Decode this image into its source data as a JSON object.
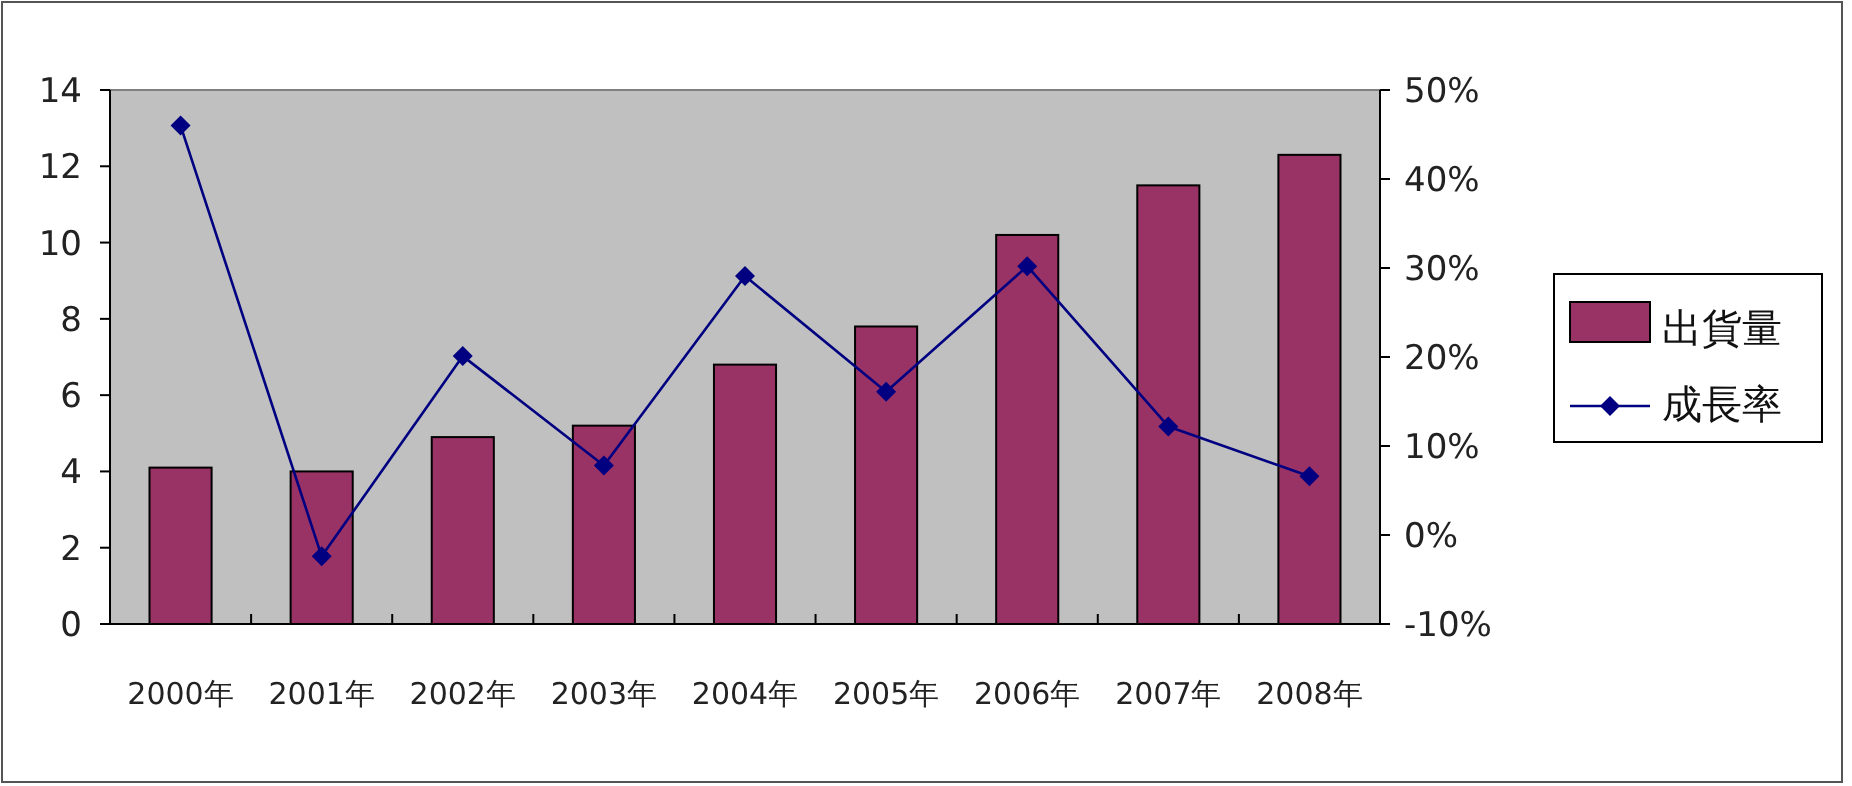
{
  "chart_data": {
    "type": "bar",
    "categories": [
      "2000年",
      "2001年",
      "2002年",
      "2003年",
      "2004年",
      "2005年",
      "2006年",
      "2007年",
      "2008年"
    ],
    "series": [
      {
        "name": "出貨量",
        "color": "#993366",
        "values": [
          4.1,
          4.0,
          4.9,
          5.2,
          6.8,
          7.8,
          10.2,
          11.5,
          12.3
        ]
      },
      {
        "name": "成長率",
        "type": "line",
        "axis": "y2",
        "color": "#000080",
        "marker": "diamond",
        "values": [
          46,
          -2.4,
          20.1,
          7.8,
          29.1,
          16.1,
          30.2,
          12.2,
          6.6
        ]
      }
    ],
    "ylim": [
      0,
      14
    ],
    "yticks": [
      0,
      2,
      4,
      6,
      8,
      10,
      12,
      14
    ],
    "y2lim": [
      -10,
      50
    ],
    "y2ticks": [
      {
        "value": -10,
        "label": "-10%"
      },
      {
        "value": 0,
        "label": "0%"
      },
      {
        "value": 10,
        "label": "10%"
      },
      {
        "value": 20,
        "label": "20%"
      },
      {
        "value": 30,
        "label": "30%"
      },
      {
        "value": 40,
        "label": "40%"
      },
      {
        "value": 50,
        "label": "50%"
      }
    ],
    "legend": "right",
    "grid": false
  }
}
